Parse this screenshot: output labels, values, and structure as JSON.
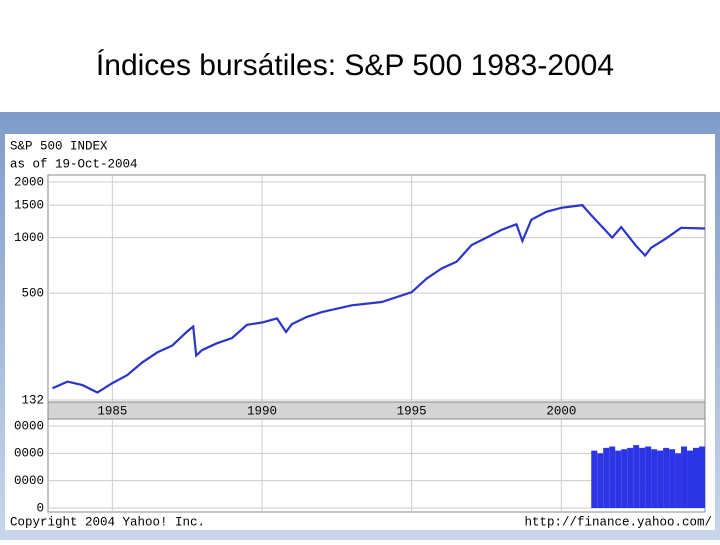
{
  "slide": {
    "title": "Índices bursátiles: S&P 500 1983-2004"
  },
  "chart_data": {
    "type": "line",
    "title": "S&P 500 INDEX",
    "subtitle": "as of 19-Oct-2004",
    "log_scale": true,
    "grid": true,
    "x": [
      1983.0,
      1983.5,
      1984.0,
      1984.5,
      1985.0,
      1985.5,
      1986.0,
      1986.5,
      1987.0,
      1987.5,
      1987.7,
      1987.8,
      1988.0,
      1988.5,
      1989.0,
      1989.5,
      1990.0,
      1990.5,
      1990.8,
      1991.0,
      1991.5,
      1992.0,
      1993.0,
      1994.0,
      1995.0,
      1995.5,
      1996.0,
      1996.5,
      1997.0,
      1997.5,
      1998.0,
      1998.5,
      1998.7,
      1999.0,
      1999.5,
      2000.0,
      2000.7,
      2001.0,
      2001.7,
      2002.0,
      2002.5,
      2002.8,
      2003.0,
      2003.5,
      2004.0,
      2004.8
    ],
    "series": [
      {
        "name": "S&P 500",
        "color": "#2b35c9",
        "values": [
          153,
          166,
          159,
          145,
          163,
          180,
          211,
          239,
          260,
          310,
          330,
          230,
          246,
          268,
          286,
          337,
          347,
          365,
          308,
          340,
          372,
          395,
          430,
          448,
          506,
          600,
          680,
          740,
          910,
          1000,
          1100,
          1180,
          960,
          1250,
          1380,
          1450,
          1500,
          1320,
          1000,
          1140,
          900,
          800,
          880,
          990,
          1130,
          1120
        ]
      }
    ],
    "xlim": [
      1982.85,
      2004.8
    ],
    "xticks": [
      1985,
      1990,
      1995,
      2000
    ],
    "ylim": [
      132,
      2000
    ],
    "yticks": [
      132,
      500,
      1000,
      1500,
      2000
    ],
    "volume": {
      "x": [
        2001.1,
        2001.3,
        2001.5,
        2001.7,
        2001.9,
        2002.1,
        2002.3,
        2002.5,
        2002.7,
        2002.9,
        2003.1,
        2003.3,
        2003.5,
        2003.7,
        2003.9,
        2004.1,
        2004.3,
        2004.5,
        2004.7
      ],
      "values": [
        2100000000,
        2000000000,
        2200000000,
        2250000000,
        2100000000,
        2150000000,
        2200000000,
        2300000000,
        2200000000,
        2250000000,
        2150000000,
        2100000000,
        2200000000,
        2150000000,
        2000000000,
        2250000000,
        2100000000,
        2200000000,
        2250000000
      ],
      "color": "#2b35e6",
      "ylim": [
        0,
        3000000000
      ],
      "yticks": [
        {
          "value": 3000000000,
          "label": "0000"
        },
        {
          "value": 2000000000,
          "label": "0000"
        },
        {
          "value": 1000000000,
          "label": "0000"
        },
        0
      ]
    },
    "copyright": "Copyright 2004 Yahoo! Inc.",
    "source": "http://finance.yahoo.com/"
  }
}
